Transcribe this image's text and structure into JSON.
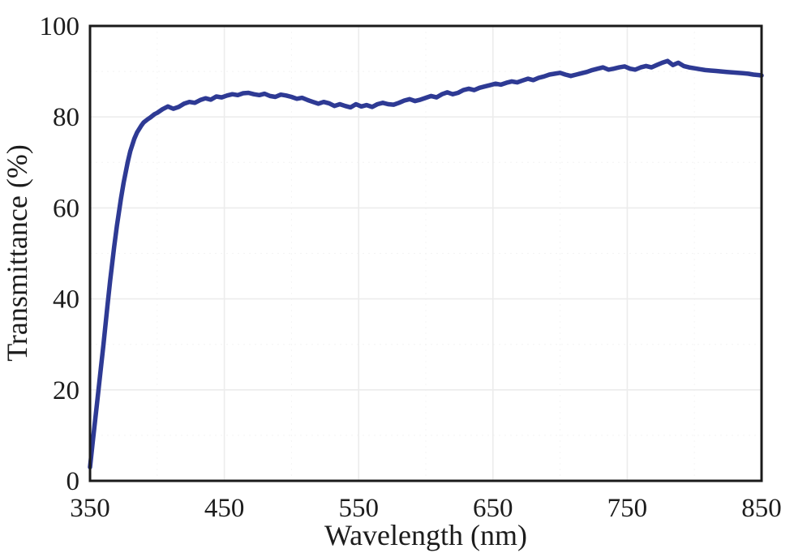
{
  "figure": {
    "background_color": "#ffffff",
    "axis_frame_color": "#1a1a1a",
    "major_grid_color": "#ececec",
    "minor_grid_color": "#f4f4f4",
    "text_color": "#1c1c1c"
  },
  "chart_data": {
    "type": "line",
    "title": "",
    "xlabel": "Wavelength (nm)",
    "ylabel": "Transmittance (%)",
    "xlim": [
      350,
      850
    ],
    "ylim": [
      0,
      100
    ],
    "x_ticks": [
      350,
      450,
      550,
      650,
      750,
      850
    ],
    "y_ticks": [
      0,
      20,
      40,
      60,
      80,
      100
    ],
    "grid": "faint major gridlines both axes, framed plot box, no tick marks",
    "legend_position": "none",
    "series": [
      {
        "name": "transmittance-spectrum",
        "color": "#2e3a94",
        "line_width": 5.5,
        "points": [
          [
            350,
            3.0
          ],
          [
            352,
            8.5
          ],
          [
            355,
            16.5
          ],
          [
            358,
            24.5
          ],
          [
            360,
            30.0
          ],
          [
            363,
            38.5
          ],
          [
            365,
            44.0
          ],
          [
            368,
            51.5
          ],
          [
            370,
            56.0
          ],
          [
            373,
            62.0
          ],
          [
            375,
            65.5
          ],
          [
            378,
            70.0
          ],
          [
            380,
            72.5
          ],
          [
            383,
            75.2
          ],
          [
            385,
            76.6
          ],
          [
            388,
            78.0
          ],
          [
            390,
            78.8
          ],
          [
            393,
            79.5
          ],
          [
            395,
            79.9
          ],
          [
            398,
            80.6
          ],
          [
            400,
            80.9
          ],
          [
            404,
            81.7
          ],
          [
            408,
            82.3
          ],
          [
            412,
            81.8
          ],
          [
            416,
            82.2
          ],
          [
            420,
            82.9
          ],
          [
            424,
            83.3
          ],
          [
            428,
            83.1
          ],
          [
            432,
            83.7
          ],
          [
            436,
            84.1
          ],
          [
            440,
            83.8
          ],
          [
            444,
            84.5
          ],
          [
            448,
            84.3
          ],
          [
            452,
            84.7
          ],
          [
            456,
            85.0
          ],
          [
            460,
            84.8
          ],
          [
            464,
            85.2
          ],
          [
            468,
            85.3
          ],
          [
            472,
            85.0
          ],
          [
            476,
            84.8
          ],
          [
            480,
            85.1
          ],
          [
            484,
            84.6
          ],
          [
            488,
            84.4
          ],
          [
            492,
            84.9
          ],
          [
            496,
            84.7
          ],
          [
            500,
            84.4
          ],
          [
            504,
            84.0
          ],
          [
            508,
            84.2
          ],
          [
            512,
            83.7
          ],
          [
            516,
            83.3
          ],
          [
            520,
            82.9
          ],
          [
            524,
            83.3
          ],
          [
            528,
            83.0
          ],
          [
            532,
            82.4
          ],
          [
            536,
            82.8
          ],
          [
            540,
            82.4
          ],
          [
            544,
            82.1
          ],
          [
            548,
            82.8
          ],
          [
            552,
            82.3
          ],
          [
            556,
            82.6
          ],
          [
            560,
            82.2
          ],
          [
            564,
            82.8
          ],
          [
            568,
            83.1
          ],
          [
            572,
            82.8
          ],
          [
            576,
            82.7
          ],
          [
            580,
            83.1
          ],
          [
            584,
            83.6
          ],
          [
            588,
            83.9
          ],
          [
            592,
            83.5
          ],
          [
            596,
            83.8
          ],
          [
            600,
            84.2
          ],
          [
            604,
            84.6
          ],
          [
            608,
            84.3
          ],
          [
            612,
            85.0
          ],
          [
            616,
            85.4
          ],
          [
            620,
            85.0
          ],
          [
            624,
            85.3
          ],
          [
            628,
            85.9
          ],
          [
            632,
            86.2
          ],
          [
            636,
            85.9
          ],
          [
            640,
            86.4
          ],
          [
            644,
            86.7
          ],
          [
            648,
            87.0
          ],
          [
            652,
            87.3
          ],
          [
            656,
            87.1
          ],
          [
            660,
            87.5
          ],
          [
            664,
            87.8
          ],
          [
            668,
            87.6
          ],
          [
            672,
            88.0
          ],
          [
            676,
            88.4
          ],
          [
            680,
            88.1
          ],
          [
            684,
            88.6
          ],
          [
            688,
            88.9
          ],
          [
            692,
            89.3
          ],
          [
            696,
            89.5
          ],
          [
            700,
            89.7
          ],
          [
            704,
            89.3
          ],
          [
            708,
            89.0
          ],
          [
            712,
            89.3
          ],
          [
            716,
            89.6
          ],
          [
            720,
            89.9
          ],
          [
            724,
            90.3
          ],
          [
            728,
            90.6
          ],
          [
            732,
            90.9
          ],
          [
            736,
            90.4
          ],
          [
            740,
            90.6
          ],
          [
            744,
            90.9
          ],
          [
            748,
            91.1
          ],
          [
            752,
            90.6
          ],
          [
            756,
            90.4
          ],
          [
            760,
            90.9
          ],
          [
            764,
            91.2
          ],
          [
            768,
            90.9
          ],
          [
            772,
            91.4
          ],
          [
            776,
            91.9
          ],
          [
            780,
            92.3
          ],
          [
            784,
            91.4
          ],
          [
            788,
            91.9
          ],
          [
            792,
            91.2
          ],
          [
            796,
            90.9
          ],
          [
            800,
            90.7
          ],
          [
            804,
            90.5
          ],
          [
            808,
            90.3
          ],
          [
            812,
            90.2
          ],
          [
            816,
            90.1
          ],
          [
            820,
            90.0
          ],
          [
            824,
            89.9
          ],
          [
            828,
            89.8
          ],
          [
            832,
            89.7
          ],
          [
            836,
            89.6
          ],
          [
            840,
            89.5
          ],
          [
            844,
            89.3
          ],
          [
            848,
            89.2
          ],
          [
            850,
            89.1
          ]
        ]
      }
    ]
  }
}
